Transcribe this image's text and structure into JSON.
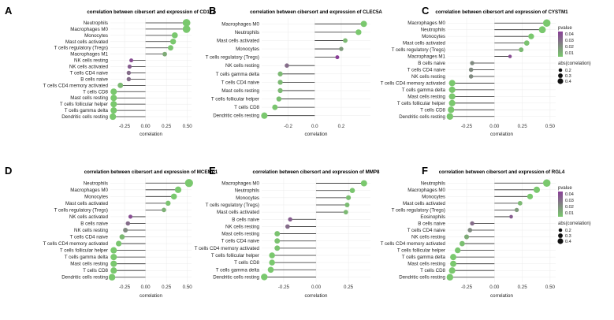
{
  "figure": {
    "colors": {
      "high": "#7ac86e",
      "low": "#8a3f98",
      "stick": "#2b2b2b",
      "grid": "#ebebeb"
    },
    "legend": {
      "pvalue_title": "pvalue",
      "pvalue_ticks": [
        "0.04",
        "0.03",
        "0.02",
        "0.01"
      ],
      "size_title": "abs(correlation)",
      "size_ticks": [
        "0.2",
        "0.3",
        "0.4"
      ]
    }
  },
  "chart_data": [
    {
      "type": "lollipop",
      "panel": "A",
      "title": "correlation between cibersort and expression of CD177",
      "xlabel": "correlation",
      "xlim": [
        -0.42,
        0.55
      ],
      "xticks": [
        -0.25,
        0,
        0.25,
        0.5
      ],
      "xtick_labels": [
        "-0.25",
        "0.00",
        "0.25",
        "0.50"
      ],
      "has_legend": false,
      "categories": [
        "Neutrophils",
        "Macrophages M0",
        "Monocytes",
        "Mast cells activated",
        "T cells regulatory (Tregs)",
        "Macrophages M1",
        "NK cells resting",
        "NK cells activated",
        "T cells CD4 naive",
        "B cells naive",
        "T cells CD4 memory activated",
        "T cells CD8",
        "Mast cells resting",
        "T cells follicular helper",
        "T cells gamma delta",
        "Dendritic cells resting"
      ],
      "values": [
        0.49,
        0.49,
        0.35,
        0.33,
        0.3,
        0.23,
        -0.17,
        -0.19,
        -0.2,
        -0.2,
        -0.3,
        -0.38,
        -0.38,
        -0.38,
        -0.38,
        -0.39
      ],
      "pvalues": [
        0.0,
        0.0,
        0.0,
        0.0,
        0.001,
        0.01,
        0.04,
        0.035,
        0.03,
        0.03,
        0.005,
        0.0,
        0.0,
        0.0,
        0.0,
        0.0
      ]
    },
    {
      "type": "lollipop",
      "panel": "B",
      "title": "correlation between cibersort and expression of CLEC5A",
      "xlabel": "correlation",
      "xlim": [
        -0.4,
        0.42
      ],
      "xticks": [
        -0.2,
        0,
        0.2
      ],
      "xtick_labels": [
        "-0.2",
        "0.0",
        "0.2"
      ],
      "has_legend": false,
      "categories": [
        "Macrophages M0",
        "Neutrophils",
        "Mast cells activated",
        "Monocytes",
        "T cells regulatory (Tregs)",
        "NK cells resting",
        "T cells gamma delta",
        "T cells CD4 naive",
        "Mast cells resting",
        "T cells follicular helper",
        "T cells CD8",
        "Dendritic cells resting"
      ],
      "values": [
        0.37,
        0.33,
        0.23,
        0.2,
        0.17,
        -0.21,
        -0.26,
        -0.26,
        -0.26,
        -0.27,
        -0.3,
        -0.38
      ],
      "pvalues": [
        0.0,
        0.0,
        0.005,
        0.015,
        0.045,
        0.03,
        0.005,
        0.005,
        0.005,
        0.003,
        0.001,
        0.0
      ]
    },
    {
      "type": "lollipop",
      "panel": "C",
      "title": "correlation between cibersort and expression of CYSTM1",
      "xlabel": "correlation",
      "xlim": [
        -0.42,
        0.55
      ],
      "xticks": [
        -0.25,
        0,
        0.25,
        0.5
      ],
      "xtick_labels": [
        "-0.25",
        "0.00",
        "0.25",
        "0.50"
      ],
      "has_legend": true,
      "categories": [
        "Macrophages M0",
        "Neutrophils",
        "Monocytes",
        "Mast cells activated",
        "T cells regulatory (Tregs)",
        "Macrophages M1",
        "B cells naive",
        "T cells CD4 naive",
        "NK cells resting",
        "T cells CD4 memory activated",
        "T cells gamma delta",
        "Mast cells resting",
        "T cells follicular helper",
        "T cells CD8",
        "Dendritic cells resting"
      ],
      "values": [
        0.47,
        0.43,
        0.33,
        0.29,
        0.24,
        0.14,
        -0.2,
        -0.21,
        -0.21,
        -0.38,
        -0.38,
        -0.38,
        -0.38,
        -0.39,
        -0.4
      ],
      "pvalues": [
        0.0,
        0.0,
        0.0,
        0.002,
        0.005,
        0.04,
        0.02,
        0.02,
        0.02,
        0.0,
        0.0,
        0.0,
        0.0,
        0.0,
        0.0
      ]
    },
    {
      "type": "lollipop",
      "panel": "D",
      "title": "correlation between cibersort and expression of MCEMP1",
      "xlabel": "correlation",
      "xlim": [
        -0.42,
        0.55
      ],
      "xticks": [
        -0.25,
        0,
        0.25,
        0.5
      ],
      "xtick_labels": [
        "-0.25",
        "0.00",
        "0.25",
        "0.50"
      ],
      "has_legend": false,
      "categories": [
        "Neutrophils",
        "Macrophages M0",
        "Monocytes",
        "Mast cells activated",
        "T cells regulatory (Tregs)",
        "NK cells activated",
        "B cells naive",
        "NK cells resting",
        "T cells CD4 naive",
        "T cells CD4 memory activated",
        "T cells follicular helper",
        "T cells gamma delta",
        "Mast cells resting",
        "T cells CD8",
        "Dendritic cells resting"
      ],
      "values": [
        0.52,
        0.39,
        0.34,
        0.27,
        0.22,
        -0.18,
        -0.21,
        -0.24,
        -0.28,
        -0.32,
        -0.38,
        -0.38,
        -0.38,
        -0.38,
        -0.4
      ],
      "pvalues": [
        0.0,
        0.0,
        0.0,
        0.002,
        0.008,
        0.04,
        0.03,
        0.02,
        0.005,
        0.001,
        0.0,
        0.0,
        0.0,
        0.0,
        0.0
      ]
    },
    {
      "type": "lollipop",
      "panel": "E",
      "title": "correlation between cibersort and expression of MMP8",
      "xlabel": "correlation",
      "xlim": [
        -0.42,
        0.42
      ],
      "xticks": [
        -0.25,
        0,
        0.25
      ],
      "xtick_labels": [
        "-0.25",
        "0.00",
        "0.25"
      ],
      "has_legend": false,
      "categories": [
        "Macrophages M0",
        "Neutrophils",
        "Monocytes",
        "T cells regulatory (Tregs)",
        "Mast cells activated",
        "B cells naive",
        "NK cells resting",
        "Mast cells resting",
        "T cells CD4 naive",
        "T cells CD4 memory activated",
        "T cells follicular helper",
        "T cells CD8",
        "T cells gamma delta",
        "Dendritic cells resting"
      ],
      "values": [
        0.37,
        0.28,
        0.25,
        0.24,
        0.23,
        -0.2,
        -0.22,
        -0.3,
        -0.3,
        -0.3,
        -0.34,
        -0.34,
        -0.35,
        -0.4
      ],
      "pvalues": [
        0.0,
        0.001,
        0.003,
        0.004,
        0.005,
        0.035,
        0.03,
        0.002,
        0.002,
        0.002,
        0.0,
        0.0,
        0.0,
        0.0
      ]
    },
    {
      "type": "lollipop",
      "panel": "F",
      "title": "correlation between cibersort and expression of RGL4",
      "xlabel": "correlation",
      "xlim": [
        -0.42,
        0.55
      ],
      "xticks": [
        -0.25,
        0,
        0.25,
        0.5
      ],
      "xtick_labels": [
        "-0.25",
        "0.00",
        "0.25",
        "0.50"
      ],
      "has_legend": true,
      "categories": [
        "Neutrophils",
        "Macrophages M0",
        "Monocytes",
        "Mast cells activated",
        "T cells regulatory (Tregs)",
        "Eosinophils",
        "B cells naive",
        "T cells CD4 naive",
        "NK cells resting",
        "T cells CD4 memory activated",
        "T cells follicular helper",
        "T cells gamma delta",
        "Mast cells resting",
        "T cells CD8",
        "Dendritic cells resting"
      ],
      "values": [
        0.47,
        0.38,
        0.32,
        0.23,
        0.2,
        0.15,
        -0.2,
        -0.22,
        -0.25,
        -0.29,
        -0.33,
        -0.37,
        -0.37,
        -0.38,
        -0.4
      ],
      "pvalues": [
        0.0,
        0.0,
        0.0,
        0.005,
        0.015,
        0.035,
        0.03,
        0.02,
        0.01,
        0.003,
        0.001,
        0.0,
        0.0,
        0.0,
        0.0
      ]
    }
  ]
}
